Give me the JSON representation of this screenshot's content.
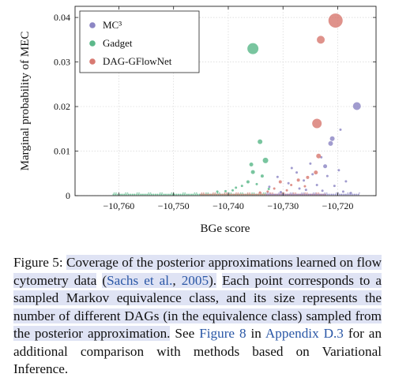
{
  "chart_data": {
    "type": "scatter",
    "xlabel": "BGe score",
    "ylabel": "Marginal probability of MEC",
    "xlim": [
      -10768,
      -10713
    ],
    "ylim": [
      0,
      0.0425
    ],
    "xticks": [
      -10760,
      -10750,
      -10740,
      -10730,
      -10720
    ],
    "xtick_labels": [
      "−10,760",
      "−10,750",
      "−10,740",
      "−10,730",
      "−10,720"
    ],
    "yticks": [
      0,
      0.01,
      0.02,
      0.03,
      0.04
    ],
    "ytick_labels": [
      "0",
      "0.01",
      "0.02",
      "0.03",
      "0.04"
    ],
    "grid": true,
    "legend_position": "top-left",
    "series": [
      {
        "name": "MC³",
        "color": "#8c86c4",
        "points": [
          {
            "x": -10716.5,
            "y": 0.0201,
            "size": 5
          },
          {
            "x": -10721.0,
            "y": 0.0128,
            "size": 3
          },
          {
            "x": -10721.3,
            "y": 0.0117,
            "size": 3
          },
          {
            "x": -10719.5,
            "y": 0.0148,
            "size": 1.5
          },
          {
            "x": -10723.0,
            "y": 0.0086,
            "size": 1.5
          },
          {
            "x": -10725.0,
            "y": 0.0072,
            "size": 1.5
          },
          {
            "x": -10722.3,
            "y": 0.0066,
            "size": 2.5
          },
          {
            "x": -10727.5,
            "y": 0.0052,
            "size": 1.5
          },
          {
            "x": -10728.4,
            "y": 0.0062,
            "size": 1.5
          },
          {
            "x": -10719.8,
            "y": 0.0057,
            "size": 1.5
          },
          {
            "x": -10724.6,
            "y": 0.0048,
            "size": 1.5
          },
          {
            "x": -10731.0,
            "y": 0.0042,
            "size": 1.5
          },
          {
            "x": -10721.9,
            "y": 0.0044,
            "size": 1.5
          },
          {
            "x": -10726.2,
            "y": 0.0034,
            "size": 1.5
          },
          {
            "x": -10718.5,
            "y": 0.0032,
            "size": 1.5
          },
          {
            "x": -10729.0,
            "y": 0.0028,
            "size": 1.5
          },
          {
            "x": -10723.8,
            "y": 0.0024,
            "size": 1.5
          },
          {
            "x": -10720.6,
            "y": 0.0022,
            "size": 1.5
          },
          {
            "x": -10732.5,
            "y": 0.002,
            "size": 1.5
          },
          {
            "x": -10727.0,
            "y": 0.0016,
            "size": 1.5
          },
          {
            "x": -10725.8,
            "y": 0.0013,
            "size": 1.5
          },
          {
            "x": -10722.8,
            "y": 0.0011,
            "size": 1.5
          },
          {
            "x": -10719.0,
            "y": 0.0009,
            "size": 1.5
          },
          {
            "x": -10730.4,
            "y": 0.0008,
            "size": 1.5
          },
          {
            "x": -10717.6,
            "y": 0.0006,
            "size": 1.5
          }
        ]
      },
      {
        "name": "Gadget",
        "color": "#5cb88a",
        "points": [
          {
            "x": -10735.5,
            "y": 0.033,
            "size": 7
          },
          {
            "x": -10734.2,
            "y": 0.0121,
            "size": 3
          },
          {
            "x": -10733.2,
            "y": 0.0079,
            "size": 3.5
          },
          {
            "x": -10735.8,
            "y": 0.007,
            "size": 2.5
          },
          {
            "x": -10735.5,
            "y": 0.0053,
            "size": 2.5
          },
          {
            "x": -10733.8,
            "y": 0.0044,
            "size": 2
          },
          {
            "x": -10736.4,
            "y": 0.0031,
            "size": 2
          },
          {
            "x": -10734.8,
            "y": 0.0026,
            "size": 1.5
          },
          {
            "x": -10737.5,
            "y": 0.0022,
            "size": 1.5
          },
          {
            "x": -10738.6,
            "y": 0.0018,
            "size": 1.5
          },
          {
            "x": -10732.6,
            "y": 0.0015,
            "size": 1.5
          },
          {
            "x": -10739.2,
            "y": 0.0012,
            "size": 1.5
          },
          {
            "x": -10740.5,
            "y": 0.001,
            "size": 1.5
          },
          {
            "x": -10742.0,
            "y": 0.0009,
            "size": 1.5
          }
        ]
      },
      {
        "name": "DAG-GFlowNet",
        "color": "#d87a72",
        "points": [
          {
            "x": -10720.4,
            "y": 0.0393,
            "size": 9
          },
          {
            "x": -10723.1,
            "y": 0.035,
            "size": 5
          },
          {
            "x": -10723.8,
            "y": 0.0162,
            "size": 6
          },
          {
            "x": -10723.5,
            "y": 0.0089,
            "size": 3
          },
          {
            "x": -10724.0,
            "y": 0.0052,
            "size": 2.5
          },
          {
            "x": -10725.5,
            "y": 0.0041,
            "size": 2
          },
          {
            "x": -10727.2,
            "y": 0.0035,
            "size": 2
          },
          {
            "x": -10730.5,
            "y": 0.0031,
            "size": 2
          },
          {
            "x": -10728.5,
            "y": 0.0024,
            "size": 1.5
          },
          {
            "x": -10726.0,
            "y": 0.0021,
            "size": 1.5
          },
          {
            "x": -10731.6,
            "y": 0.0016,
            "size": 1.5
          },
          {
            "x": -10729.3,
            "y": 0.0012,
            "size": 1.5
          },
          {
            "x": -10732.8,
            "y": 0.0009,
            "size": 1.5
          },
          {
            "x": -10734.2,
            "y": 0.0007,
            "size": 1.5
          }
        ]
      }
    ],
    "baseline_bands": [
      {
        "series": "Gadget",
        "color": "#5cb88a",
        "x_from": -10761,
        "x_to": -10733
      },
      {
        "series": "DAG-GFlowNet",
        "color": "#d87a72",
        "x_from": -10745,
        "x_to": -10722
      },
      {
        "series": "MC³",
        "color": "#8c86c4",
        "x_from": -10733,
        "x_to": -10716
      }
    ]
  },
  "caption": {
    "label": "Figure 5:",
    "title": "Coverage of the posterior approximations learned on flow cytometry data",
    "cite_open": "(",
    "cite_author": "Sachs et al.",
    "cite_sep": ", ",
    "cite_year": "2005",
    "cite_close": ").",
    "sentence2": "Each point corresponds to a sampled Markov equivalence class, and its size represents the number of different DAGs (in the equivalence class) sampled from the posterior approximation.",
    "see": "See",
    "figure_ref": "Figure 8",
    "in_text": "in",
    "appendix_ref": "Appendix D.3",
    "rest": "for an additional comparison with methods based on Variational Inference."
  }
}
